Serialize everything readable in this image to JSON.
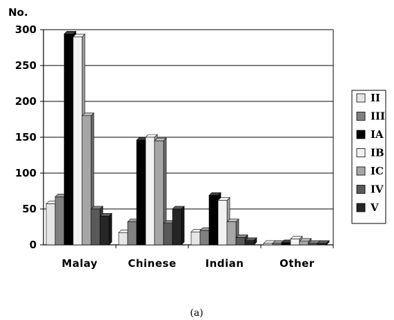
{
  "chart_data": {
    "type": "bar",
    "ylabel": "No.",
    "ylim": [
      0,
      300
    ],
    "yticks": [
      0,
      50,
      100,
      150,
      200,
      250,
      300
    ],
    "categories": [
      "Malay",
      "Chinese",
      "Indian",
      "Other"
    ],
    "series": [
      {
        "name": "II",
        "color": "#e6e6e6",
        "values": [
          57,
          17,
          18,
          2
        ]
      },
      {
        "name": "III",
        "color": "#808080",
        "values": [
          67,
          32,
          20,
          2
        ]
      },
      {
        "name": "IA",
        "color": "#000000",
        "values": [
          294,
          146,
          69,
          3
        ]
      },
      {
        "name": "IB",
        "color": "#f2f2f2",
        "values": [
          290,
          150,
          62,
          8
        ]
      },
      {
        "name": "IC",
        "color": "#a6a6a6",
        "values": [
          180,
          145,
          32,
          5
        ]
      },
      {
        "name": "IV",
        "color": "#595959",
        "values": [
          50,
          30,
          10,
          2
        ]
      },
      {
        "name": "V",
        "color": "#262626",
        "values": [
          40,
          50,
          6,
          2
        ]
      }
    ],
    "grid": true,
    "legend_position": "right",
    "caption": "(a)"
  }
}
